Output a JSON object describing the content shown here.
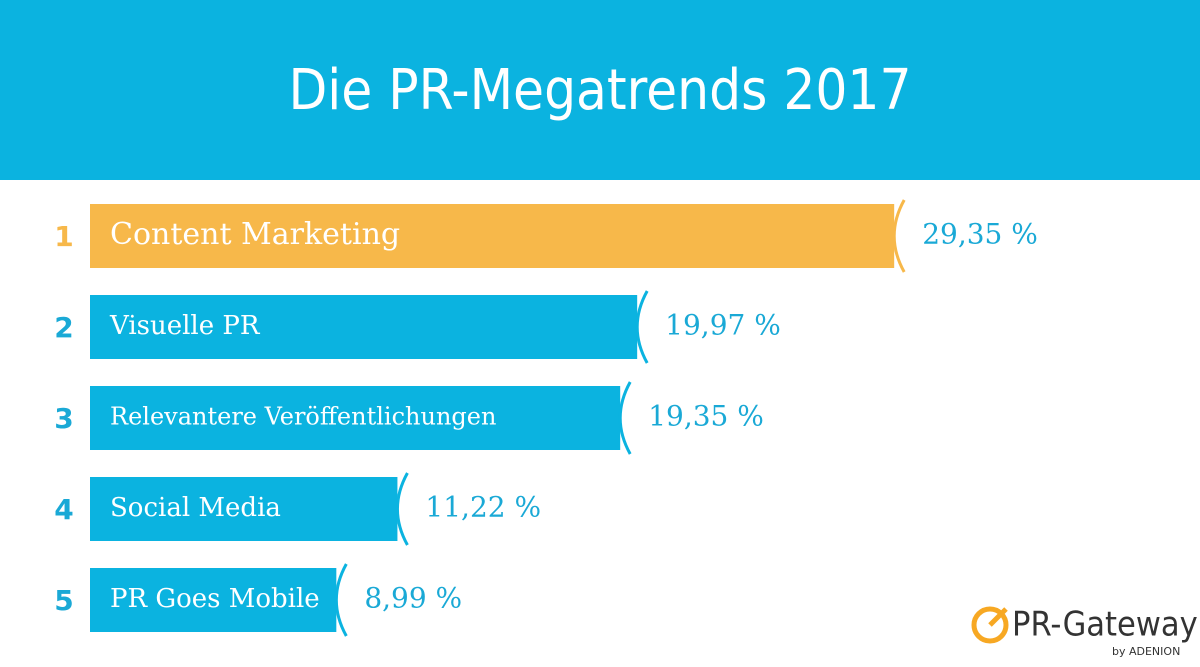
{
  "chart_data": {
    "type": "hbar",
    "title": "Die PR-Megatrends 2017",
    "ranks": [
      "1",
      "2",
      "3",
      "4",
      "5"
    ],
    "categories": [
      "Content Marketing",
      "Visuelle PR",
      "Relevantere Veröffentlichungen",
      "Social Media",
      "PR Goes Mobile"
    ],
    "values": [
      29.35,
      19.97,
      19.35,
      11.22,
      8.99
    ],
    "value_labels": [
      "29,35 %",
      "19,97 %",
      "19,35 %",
      "11,22 %",
      "8,99 %"
    ],
    "colors": [
      "#f7b84a",
      "#0bb3e0",
      "#0bb3e0",
      "#0bb3e0",
      "#0bb3e0"
    ]
  },
  "logo": {
    "name": "PR-Gateway",
    "byline": "by ADENION"
  }
}
